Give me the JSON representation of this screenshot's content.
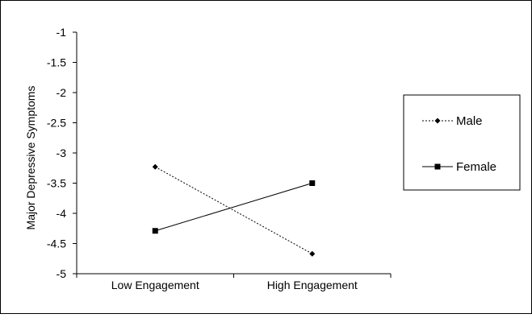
{
  "chart_data": {
    "type": "line",
    "title": "",
    "xlabel": "",
    "ylabel": "Major Depressive Symptoms",
    "categories": [
      "Low Engagement",
      "High Engagement"
    ],
    "ylim": [
      -5,
      -1
    ],
    "yticks": [
      -1,
      -1.5,
      -2,
      -2.5,
      -3,
      -3.5,
      -4,
      -4.5,
      -5
    ],
    "grid": false,
    "legend_placement": "right",
    "series": [
      {
        "name": "Male",
        "values": [
          -3.23,
          -4.67
        ],
        "line_style": "dashed",
        "marker": "diamond",
        "color": "#000000"
      },
      {
        "name": "Female",
        "values": [
          -4.29,
          -3.5
        ],
        "line_style": "solid",
        "marker": "square",
        "color": "#000000"
      }
    ]
  }
}
